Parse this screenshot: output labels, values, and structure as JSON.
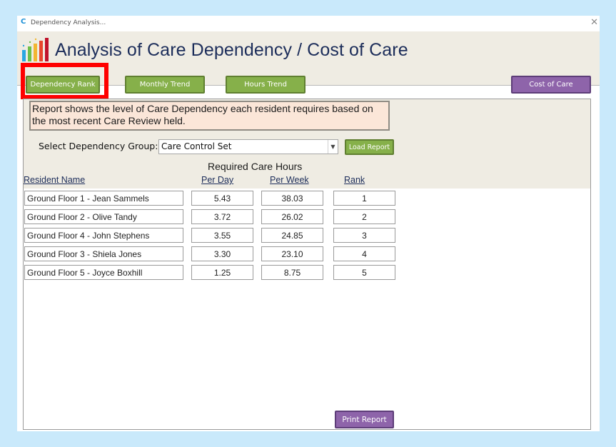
{
  "window": {
    "app_logo": "C",
    "title": "Dependency Analysis...",
    "close_glyph": "✕"
  },
  "header": {
    "title": "Analysis of Care Dependency / Cost of Care",
    "icon": "bar-chart-icon"
  },
  "nav": {
    "dependency_rank": "Dependency Rank",
    "monthly_trend": "Monthly Trend",
    "hours_trend": "Hours Trend",
    "cost_of_care": "Cost of Care"
  },
  "description": "Report shows the level of Care Dependency each resident requires based on the most recent Care Review held.",
  "filter": {
    "label": "Select Dependency Group:",
    "selected": "Care Control Set",
    "load_button": "Load Report"
  },
  "table": {
    "group_header": "Required Care Hours",
    "columns": {
      "name": "Resident Name",
      "per_day": "Per Day",
      "per_week": "Per Week",
      "rank": "Rank"
    },
    "rows": [
      {
        "name": "Ground Floor 1 - Jean Sammels",
        "per_day": "5.43",
        "per_week": "38.03",
        "rank": "1"
      },
      {
        "name": "Ground Floor 2 - Olive Tandy",
        "per_day": "3.72",
        "per_week": "26.02",
        "rank": "2"
      },
      {
        "name": "Ground Floor 4 - John Stephens",
        "per_day": "3.55",
        "per_week": "24.85",
        "rank": "3"
      },
      {
        "name": "Ground Floor 3 - Shiela Jones",
        "per_day": "3.30",
        "per_week": "23.10",
        "rank": "4"
      },
      {
        "name": "Ground Floor 5 - Joyce Boxhill",
        "per_day": "1.25",
        "per_week": "8.75",
        "rank": "5"
      }
    ]
  },
  "footer": {
    "print_button": "Print Report"
  },
  "colors": {
    "background": "#c9e9fb",
    "header_bg": "#efece3",
    "title_text": "#1c2d5a",
    "green_button": "#86b04a",
    "purple_button": "#8e64aa",
    "description_bg": "#fbe6d8",
    "highlight_border": "#ff0000"
  }
}
